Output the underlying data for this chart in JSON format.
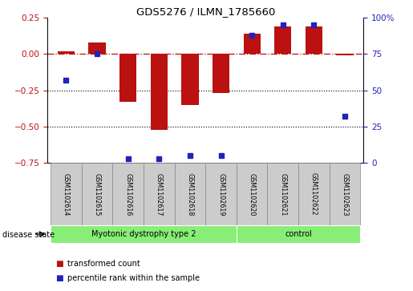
{
  "title": "GDS5276 / ILMN_1785660",
  "samples": [
    "GSM1102614",
    "GSM1102615",
    "GSM1102616",
    "GSM1102617",
    "GSM1102618",
    "GSM1102619",
    "GSM1102620",
    "GSM1102621",
    "GSM1102622",
    "GSM1102623"
  ],
  "transformed_count": [
    0.02,
    0.08,
    -0.33,
    -0.52,
    -0.35,
    -0.27,
    0.14,
    0.19,
    0.19,
    -0.01
  ],
  "percentile_rank": [
    57,
    75,
    3,
    3,
    5,
    5,
    88,
    95,
    95,
    32
  ],
  "bar_color": "#bb1111",
  "dot_color": "#2222bb",
  "ylim_left": [
    -0.75,
    0.25
  ],
  "ylim_right": [
    0,
    100
  ],
  "yticks_left": [
    0.25,
    0.0,
    -0.25,
    -0.5,
    -0.75
  ],
  "yticks_right": [
    100,
    75,
    50,
    25,
    0
  ],
  "groups": [
    {
      "label": "Myotonic dystrophy type 2",
      "start": 0,
      "end": 6,
      "color": "#88ee77"
    },
    {
      "label": "control",
      "start": 6,
      "end": 10,
      "color": "#88ee77"
    }
  ],
  "disease_state_label": "disease state",
  "legend_items": [
    {
      "label": "transformed count",
      "color": "#bb1111"
    },
    {
      "label": "percentile rank within the sample",
      "color": "#2222bb"
    }
  ],
  "hline_y": 0.0,
  "dotted_lines": [
    -0.25,
    -0.5
  ],
  "background_color": "#ffffff",
  "plot_bg_color": "#ffffff",
  "bar_width": 0.55,
  "label_box_color": "#cccccc",
  "label_box_edge": "#888888"
}
